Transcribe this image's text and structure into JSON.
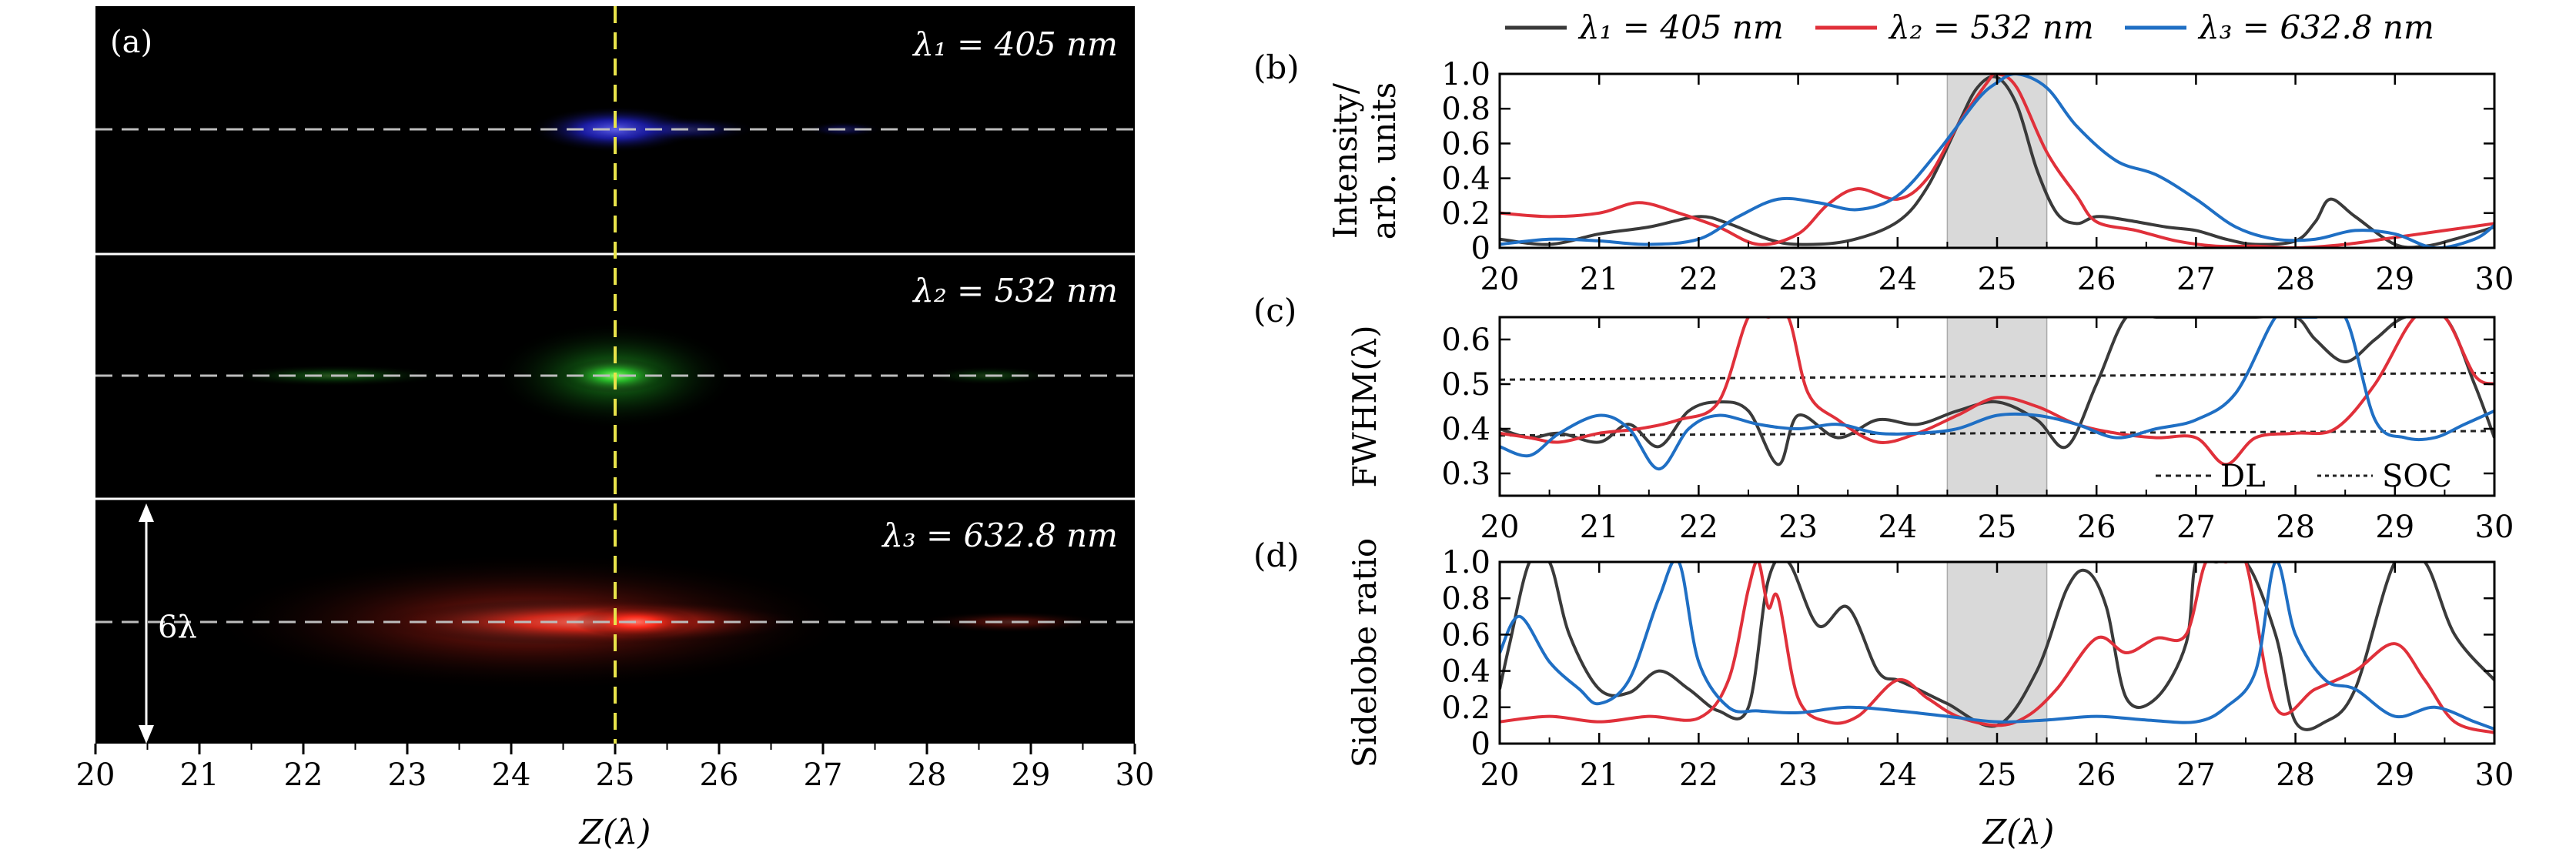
{
  "colors": {
    "lambda1": "#3a3a3a",
    "lambda2": "#e0303a",
    "lambda3": "#1f6fc4",
    "shade": "#d9d9d9",
    "center_line": "#e8e34a"
  },
  "panel_a": {
    "label": "(a)",
    "rows": [
      {
        "label": "λ₁ = 405 nm",
        "color": "#2a2cff"
      },
      {
        "label": "λ₂ = 532 nm",
        "color": "#25d62a"
      },
      {
        "label": "λ₃ = 632.8 nm",
        "color": "#ff2a1a"
      }
    ],
    "arrow_label": "6λ",
    "x_ticks": [
      "20",
      "21",
      "22",
      "23",
      "24",
      "25",
      "26",
      "27",
      "28",
      "29",
      "30"
    ],
    "xlabel": "Z(λ)"
  },
  "legend": [
    "λ₁ = 405 nm",
    "λ₂ = 532 nm",
    "λ₃ = 632.8 nm"
  ],
  "chart_data": [
    {
      "type": "line",
      "panel": "(b)",
      "ylabel": [
        "Intensity/",
        "arb. units"
      ],
      "xlim": [
        20,
        30
      ],
      "ylim": [
        0,
        1.0
      ],
      "x_ticks": [
        "20",
        "21",
        "22",
        "23",
        "24",
        "25",
        "26",
        "27",
        "28",
        "29",
        "30"
      ],
      "y_ticks": [
        "0",
        "0.2",
        "0.4",
        "0.6",
        "0.8",
        "1.0"
      ],
      "shaded_x": [
        24.5,
        25.5
      ],
      "series": [
        {
          "name": "λ₁ = 405 nm",
          "x": [
            20,
            20.5,
            21,
            21.5,
            22,
            22.3,
            22.7,
            23,
            23.5,
            24,
            24.3,
            24.6,
            24.8,
            25,
            25.2,
            25.4,
            25.6,
            25.8,
            26,
            26.3,
            26.7,
            27,
            27.3,
            27.6,
            28,
            28.2,
            28.35,
            28.6,
            29,
            29.3,
            29.6,
            30
          ],
          "y": [
            0.05,
            0.02,
            0.08,
            0.12,
            0.18,
            0.14,
            0.05,
            0.02,
            0.04,
            0.15,
            0.35,
            0.7,
            0.92,
            0.98,
            0.82,
            0.45,
            0.2,
            0.14,
            0.18,
            0.16,
            0.12,
            0.1,
            0.05,
            0.02,
            0.04,
            0.15,
            0.28,
            0.18,
            0.02,
            0.01,
            0.05,
            0.12
          ]
        },
        {
          "name": "λ₂ = 532 nm",
          "x": [
            20,
            20.5,
            21,
            21.4,
            21.8,
            22.2,
            22.6,
            23,
            23.3,
            23.6,
            24,
            24.3,
            24.6,
            24.9,
            25,
            25.2,
            25.5,
            25.8,
            26,
            26.4,
            26.8,
            27.2,
            27.6,
            28,
            28.5,
            29,
            29.5,
            30
          ],
          "y": [
            0.2,
            0.18,
            0.2,
            0.26,
            0.2,
            0.12,
            0.02,
            0.08,
            0.25,
            0.34,
            0.28,
            0.4,
            0.7,
            0.95,
            1.0,
            0.92,
            0.55,
            0.3,
            0.15,
            0.1,
            0.04,
            0.01,
            0.01,
            0.0,
            0.02,
            0.06,
            0.1,
            0.14
          ]
        },
        {
          "name": "λ₃ = 632.8 nm",
          "x": [
            20,
            20.5,
            21,
            21.5,
            22,
            22.4,
            22.8,
            23.2,
            23.6,
            24,
            24.4,
            24.8,
            25,
            25.2,
            25.5,
            25.8,
            26.2,
            26.6,
            27,
            27.4,
            27.8,
            28.2,
            28.6,
            29,
            29.4,
            29.8,
            30
          ],
          "y": [
            0.02,
            0.05,
            0.04,
            0.02,
            0.05,
            0.18,
            0.28,
            0.26,
            0.22,
            0.3,
            0.55,
            0.85,
            0.95,
            1.0,
            0.92,
            0.7,
            0.5,
            0.42,
            0.28,
            0.12,
            0.05,
            0.05,
            0.1,
            0.08,
            0.0,
            0.05,
            0.13
          ]
        }
      ]
    },
    {
      "type": "line",
      "panel": "(c)",
      "ylabel": "FWHM(λ)",
      "xlim": [
        20,
        30
      ],
      "ylim": [
        0.25,
        0.65
      ],
      "x_ticks": [
        "20",
        "21",
        "22",
        "23",
        "24",
        "25",
        "26",
        "27",
        "28",
        "29",
        "30"
      ],
      "y_ticks": [
        "0.3",
        "0.4",
        "0.5",
        "0.6"
      ],
      "shaded_x": [
        24.5,
        25.5
      ],
      "reference_lines": [
        {
          "name": "DL",
          "y0": 0.385,
          "y1": 0.395
        },
        {
          "name": "SOC",
          "y0": 0.51,
          "y1": 0.525
        }
      ],
      "series": [
        {
          "name": "λ₁ = 405 nm",
          "x": [
            20,
            20.3,
            20.6,
            21,
            21.3,
            21.6,
            21.9,
            22.2,
            22.5,
            22.8,
            23,
            23.4,
            23.8,
            24.2,
            24.6,
            25,
            25.4,
            25.7,
            26,
            26.3,
            26.6,
            26.9,
            27.2,
            27.6,
            28,
            28.2,
            28.5,
            28.8,
            29.1,
            29.5,
            29.8,
            30
          ],
          "y": [
            0.4,
            0.38,
            0.39,
            0.37,
            0.41,
            0.36,
            0.44,
            0.46,
            0.44,
            0.32,
            0.43,
            0.38,
            0.42,
            0.41,
            0.44,
            0.46,
            0.42,
            0.36,
            0.5,
            0.65,
            0.65,
            0.65,
            0.65,
            0.65,
            0.65,
            0.6,
            0.55,
            0.6,
            0.65,
            0.65,
            0.5,
            0.38
          ]
        },
        {
          "name": "λ₂ = 532 nm",
          "x": [
            20,
            20.3,
            20.6,
            21,
            21.4,
            21.8,
            22.2,
            22.5,
            22.7,
            22.9,
            23.1,
            23.4,
            23.8,
            24.2,
            24.6,
            25,
            25.4,
            25.8,
            26.2,
            26.6,
            27,
            27.3,
            27.6,
            28,
            28.4,
            28.8,
            29.2,
            29.5,
            29.8,
            30
          ],
          "y": [
            0.39,
            0.38,
            0.37,
            0.39,
            0.4,
            0.42,
            0.46,
            0.65,
            0.65,
            0.65,
            0.48,
            0.42,
            0.37,
            0.39,
            0.43,
            0.47,
            0.45,
            0.41,
            0.39,
            0.38,
            0.38,
            0.32,
            0.38,
            0.39,
            0.4,
            0.5,
            0.65,
            0.65,
            0.52,
            0.5
          ]
        },
        {
          "name": "λ₃ = 632.8 nm",
          "x": [
            20,
            20.3,
            20.6,
            21,
            21.3,
            21.6,
            21.9,
            22.2,
            22.6,
            23,
            23.4,
            23.8,
            24.2,
            24.6,
            25,
            25.4,
            25.8,
            26.2,
            26.6,
            27,
            27.4,
            27.8,
            28,
            28.2,
            28.5,
            28.8,
            29.1,
            29.4,
            29.7,
            30
          ],
          "y": [
            0.36,
            0.34,
            0.39,
            0.43,
            0.4,
            0.31,
            0.4,
            0.43,
            0.41,
            0.4,
            0.41,
            0.39,
            0.39,
            0.4,
            0.43,
            0.43,
            0.41,
            0.38,
            0.4,
            0.42,
            0.48,
            0.65,
            0.65,
            0.65,
            0.65,
            0.42,
            0.38,
            0.38,
            0.41,
            0.44
          ]
        }
      ]
    },
    {
      "type": "line",
      "panel": "(d)",
      "ylabel": "Sidelobe ratio",
      "xlim": [
        20,
        30
      ],
      "ylim": [
        0,
        1.0
      ],
      "x_ticks": [
        "20",
        "21",
        "22",
        "23",
        "24",
        "25",
        "26",
        "27",
        "28",
        "29",
        "30"
      ],
      "y_ticks": [
        "0",
        "0.2",
        "0.4",
        "0.6",
        "0.8",
        "1.0"
      ],
      "shaded_x": [
        24.5,
        25.5
      ],
      "series": [
        {
          "name": "λ₁ = 405 nm",
          "x": [
            20,
            20.1,
            20.3,
            20.5,
            20.7,
            21,
            21.3,
            21.6,
            21.9,
            22.2,
            22.5,
            22.7,
            22.9,
            23.2,
            23.5,
            23.8,
            24,
            24.2,
            24.5,
            25,
            25.4,
            25.7,
            25.9,
            26.1,
            26.3,
            26.6,
            26.9,
            27,
            27.2,
            27.5,
            27.8,
            28,
            28.3,
            28.6,
            29,
            29.3,
            29.6,
            30
          ],
          "y": [
            0.3,
            0.55,
            1.0,
            1.0,
            0.6,
            0.3,
            0.28,
            0.4,
            0.3,
            0.18,
            0.2,
            0.9,
            1.0,
            0.65,
            0.75,
            0.4,
            0.35,
            0.3,
            0.22,
            0.1,
            0.4,
            0.85,
            0.95,
            0.75,
            0.25,
            0.25,
            0.55,
            1.0,
            1.0,
            1.0,
            0.6,
            0.12,
            0.12,
            0.3,
            1.0,
            1.0,
            0.6,
            0.35
          ]
        },
        {
          "name": "λ₂ = 532 nm",
          "x": [
            20,
            20.5,
            21,
            21.5,
            22,
            22.3,
            22.5,
            22.6,
            22.7,
            22.8,
            23,
            23.3,
            23.6,
            24,
            24.3,
            24.6,
            25,
            25.3,
            25.6,
            26,
            26.3,
            26.6,
            26.9,
            27.1,
            27.3,
            27.5,
            27.8,
            28.2,
            28.6,
            29,
            29.3,
            29.6,
            30
          ],
          "y": [
            0.12,
            0.15,
            0.12,
            0.15,
            0.14,
            0.35,
            0.85,
            1.0,
            0.75,
            0.8,
            0.25,
            0.12,
            0.15,
            0.35,
            0.25,
            0.15,
            0.1,
            0.15,
            0.3,
            0.58,
            0.5,
            0.58,
            0.6,
            1.0,
            1.0,
            1.0,
            0.2,
            0.3,
            0.4,
            0.55,
            0.35,
            0.12,
            0.06
          ]
        },
        {
          "name": "λ₃ = 632.8 nm",
          "x": [
            20,
            20.2,
            20.5,
            20.8,
            21,
            21.3,
            21.6,
            21.8,
            22,
            22.3,
            22.6,
            23,
            23.5,
            24,
            24.5,
            25,
            25.5,
            26,
            26.5,
            27,
            27.3,
            27.6,
            27.8,
            28,
            28.3,
            28.6,
            29,
            29.4,
            29.8,
            30
          ],
          "y": [
            0.5,
            0.7,
            0.45,
            0.3,
            0.22,
            0.35,
            0.8,
            1.0,
            0.45,
            0.2,
            0.18,
            0.17,
            0.2,
            0.18,
            0.15,
            0.12,
            0.13,
            0.15,
            0.13,
            0.12,
            0.2,
            0.4,
            1.0,
            0.6,
            0.35,
            0.3,
            0.15,
            0.2,
            0.12,
            0.08
          ]
        }
      ]
    }
  ],
  "bottom_right_xlabel": "Z(λ)",
  "legend_ref": [
    "DL",
    "SOC"
  ]
}
